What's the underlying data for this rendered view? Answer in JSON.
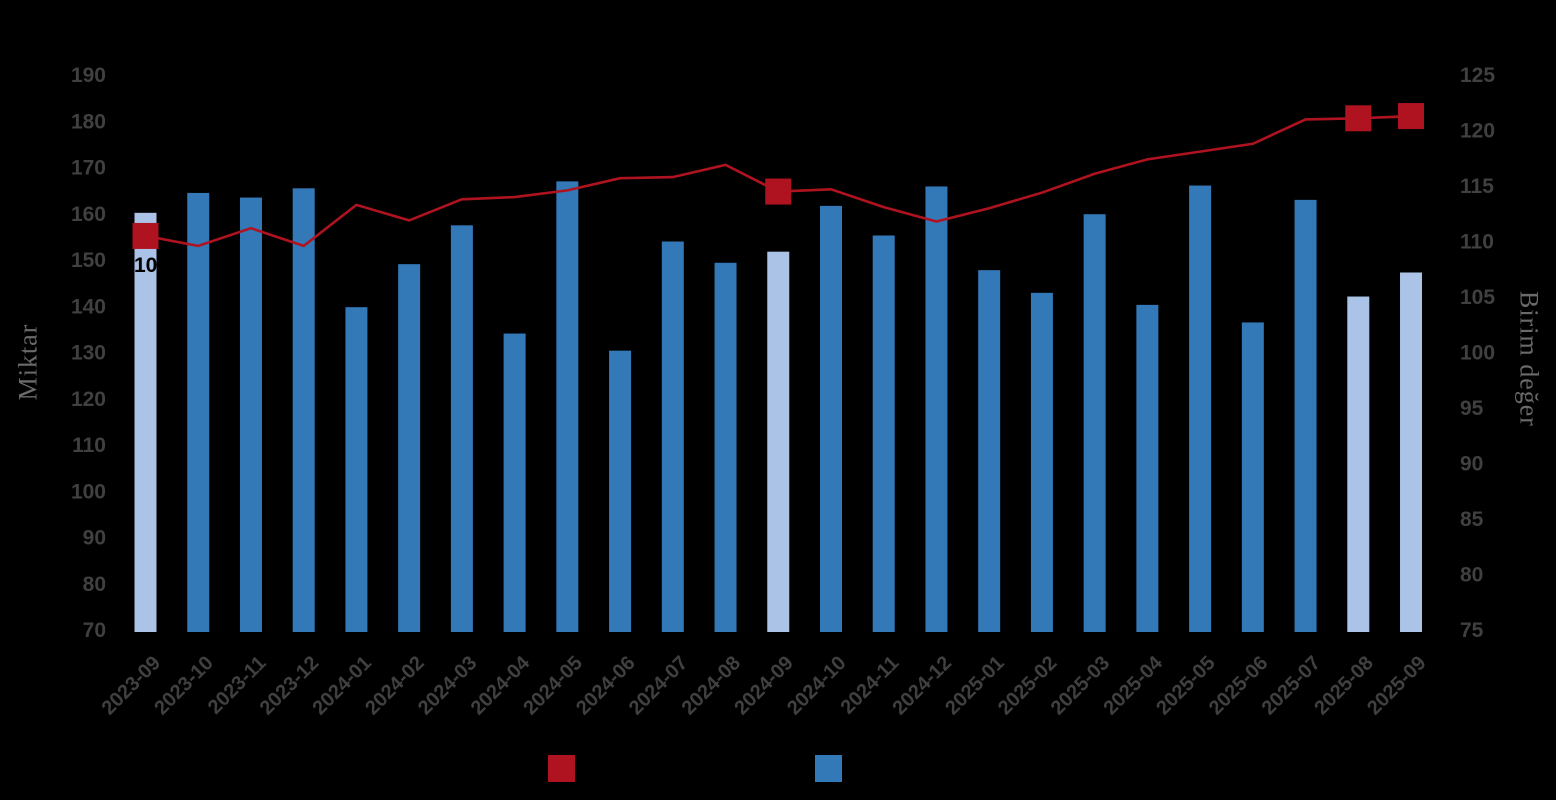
{
  "chart_data": {
    "type": "bar",
    "title": "",
    "categories": [
      "2023-09",
      "2023-10",
      "2023-11",
      "2023-12",
      "2024-01",
      "2024-02",
      "2024-03",
      "2024-04",
      "2024-05",
      "2024-06",
      "2024-07",
      "2024-08",
      "2024-09",
      "2024-10",
      "2024-11",
      "2024-12",
      "2025-01",
      "2025-02",
      "2025-03",
      "2025-04",
      "2025-05",
      "2025-06",
      "2025-07",
      "2025-08",
      "2025-09"
    ],
    "series": [
      {
        "name": "miktar-bars",
        "type": "bar",
        "axis": "left",
        "color": "#3379b8",
        "highlight_color": "#abc3e6",
        "values": [
          160.2,
          164.5,
          163.5,
          165.5,
          139.8,
          149.1,
          157.5,
          134.1,
          167.0,
          130.4,
          154.0,
          149.4,
          151.8,
          161.7,
          155.3,
          165.9,
          147.8,
          142.9,
          159.9,
          140.3,
          166.1,
          136.5,
          163.0,
          142.1,
          147.3
        ],
        "highlighted_categories": [
          "2023-09",
          "2024-09",
          "2025-08",
          "2025-09"
        ]
      },
      {
        "name": "birim-deger-line",
        "type": "line",
        "axis": "right",
        "color": "#b01320",
        "values": [
          110.5,
          109.6,
          111.2,
          109.6,
          113.3,
          111.9,
          113.8,
          114.0,
          114.6,
          115.7,
          115.8,
          116.9,
          114.5,
          114.7,
          113.1,
          111.8,
          113.0,
          114.4,
          116.1,
          117.4,
          118.1,
          118.8,
          121.0,
          121.1,
          121.3
        ],
        "marker_categories": [
          "2023-09",
          "2024-09",
          "2025-08",
          "2025-09"
        ]
      }
    ],
    "ylabel_left": "Miktar",
    "ylabel_right": "Birim değer",
    "ylim_left": [
      70,
      190
    ],
    "yticks_left": [
      190,
      180,
      170,
      160,
      150,
      140,
      130,
      120,
      110,
      100,
      90,
      80,
      70
    ],
    "ylim_right": [
      75,
      125
    ],
    "yticks_right": [
      125,
      120,
      115,
      110,
      105,
      100,
      95,
      90,
      85,
      80,
      75
    ],
    "grid": false,
    "legend_position": "bottom",
    "visible_data_label": {
      "category": "2023-09",
      "text": "10,",
      "color": "#000000"
    }
  },
  "legend": {
    "items": [
      {
        "label": "",
        "color": "#b01320"
      },
      {
        "label": "",
        "color": "#3379b8"
      }
    ]
  },
  "colors": {
    "background": "#000000",
    "tick_label": "#404040",
    "axis_title": "#6a6a6a"
  }
}
